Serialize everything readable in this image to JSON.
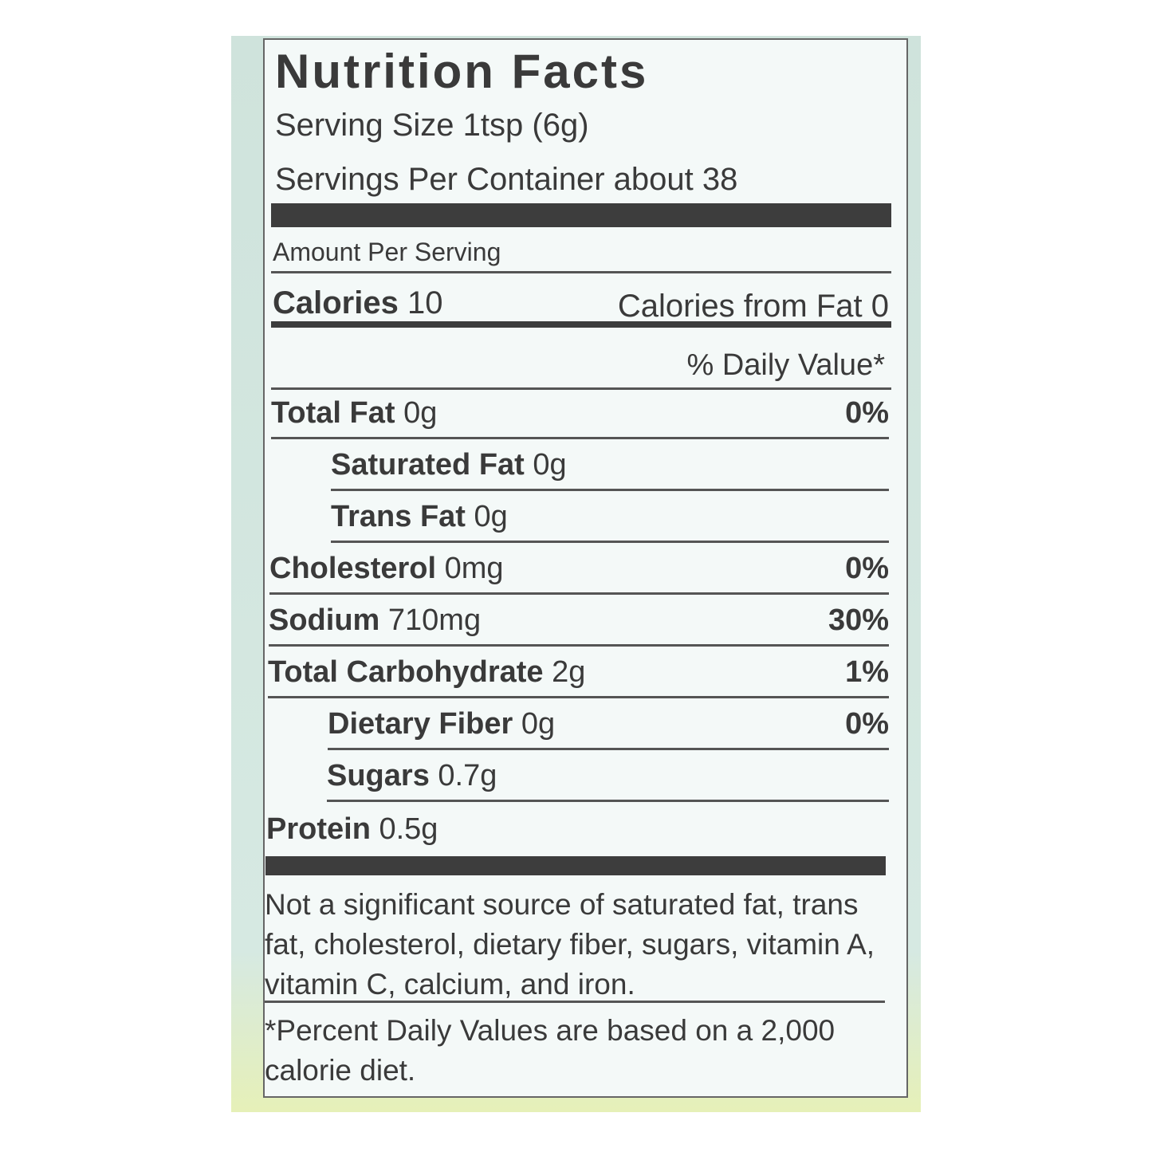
{
  "title": "Nutrition Facts",
  "serving_size": "Serving Size 1tsp (6g)",
  "servings_per_container": "Servings Per Container about 38",
  "amount_per_serving": "Amount Per Serving",
  "calories": {
    "label": "Calories",
    "value": "10",
    "from_fat": "Calories from Fat 0"
  },
  "daily_value_header": "% Daily Value*",
  "rows": [
    {
      "name": "Total Fat",
      "amount": "0g",
      "dv": "0%"
    },
    {
      "name": "Saturated Fat",
      "amount": "0g"
    },
    {
      "name": "Trans Fat",
      "amount": "0g"
    },
    {
      "name": "Cholesterol",
      "amount": "0mg",
      "dv": "0%"
    },
    {
      "name": "Sodium",
      "amount": "710mg",
      "dv": "30%"
    },
    {
      "name": "Total Carbohydrate",
      "amount": "2g",
      "dv": "1%"
    },
    {
      "name": "Dietary Fiber",
      "amount": "0g",
      "dv": "0%"
    },
    {
      "name": "Sugars",
      "amount": "0.7g"
    },
    {
      "name": "Protein",
      "amount": "0.5g"
    }
  ],
  "footnote_1": "Not a significant source of saturated fat, trans fat, cholesterol, dietary fiber, sugars, vitamin A, vitamin C, calcium, and iron.",
  "footnote_2": "*Percent Daily Values are based on a 2,000 calorie diet."
}
